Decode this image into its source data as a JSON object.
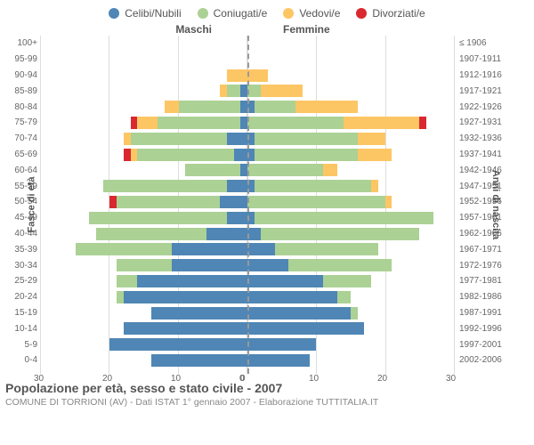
{
  "legend": [
    {
      "label": "Celibi/Nubili",
      "color": "#4f86b5"
    },
    {
      "label": "Coniugati/e",
      "color": "#abd194"
    },
    {
      "label": "Vedovi/e",
      "color": "#fdc664"
    },
    {
      "label": "Divorziati/e",
      "color": "#d9282f"
    }
  ],
  "headers": {
    "male": "Maschi",
    "female": "Femmine"
  },
  "ylabel_left": "Fasce di età",
  "ylabel_right": "Anni di nascita",
  "xticks": [
    0,
    10,
    20,
    30
  ],
  "xmax": 30,
  "title": "Popolazione per età, sesso e stato civile - 2007",
  "subtitle": "COMUNE DI TORRIONI (AV) - Dati ISTAT 1° gennaio 2007 - Elaborazione TUTTITALIA.IT",
  "grid_color": "#dddddd",
  "background": "#ffffff",
  "rows": [
    {
      "age": "100+",
      "birth": "≤ 1906",
      "m": {
        "c": 0,
        "m": 0,
        "w": 0,
        "d": 0
      },
      "f": {
        "c": 0,
        "m": 0,
        "w": 0,
        "d": 0
      }
    },
    {
      "age": "95-99",
      "birth": "1907-1911",
      "m": {
        "c": 0,
        "m": 0,
        "w": 0,
        "d": 0
      },
      "f": {
        "c": 0,
        "m": 0,
        "w": 0,
        "d": 0
      }
    },
    {
      "age": "90-94",
      "birth": "1912-1916",
      "m": {
        "c": 0,
        "m": 0,
        "w": 3,
        "d": 0
      },
      "f": {
        "c": 0,
        "m": 0,
        "w": 3,
        "d": 0
      }
    },
    {
      "age": "85-89",
      "birth": "1917-1921",
      "m": {
        "c": 1,
        "m": 2,
        "w": 1,
        "d": 0
      },
      "f": {
        "c": 0,
        "m": 2,
        "w": 6,
        "d": 0
      }
    },
    {
      "age": "80-84",
      "birth": "1922-1926",
      "m": {
        "c": 1,
        "m": 9,
        "w": 2,
        "d": 0
      },
      "f": {
        "c": 1,
        "m": 6,
        "w": 9,
        "d": 0
      }
    },
    {
      "age": "75-79",
      "birth": "1927-1931",
      "m": {
        "c": 1,
        "m": 12,
        "w": 3,
        "d": 1
      },
      "f": {
        "c": 0,
        "m": 14,
        "w": 11,
        "d": 1
      }
    },
    {
      "age": "70-74",
      "birth": "1932-1936",
      "m": {
        "c": 3,
        "m": 14,
        "w": 1,
        "d": 0
      },
      "f": {
        "c": 1,
        "m": 15,
        "w": 4,
        "d": 0
      }
    },
    {
      "age": "65-69",
      "birth": "1937-1941",
      "m": {
        "c": 2,
        "m": 14,
        "w": 1,
        "d": 1
      },
      "f": {
        "c": 1,
        "m": 15,
        "w": 5,
        "d": 0
      }
    },
    {
      "age": "60-64",
      "birth": "1942-1946",
      "m": {
        "c": 1,
        "m": 8,
        "w": 0,
        "d": 0
      },
      "f": {
        "c": 0,
        "m": 11,
        "w": 2,
        "d": 0
      }
    },
    {
      "age": "55-59",
      "birth": "1947-1951",
      "m": {
        "c": 3,
        "m": 18,
        "w": 0,
        "d": 0
      },
      "f": {
        "c": 1,
        "m": 17,
        "w": 1,
        "d": 0
      }
    },
    {
      "age": "50-54",
      "birth": "1952-1956",
      "m": {
        "c": 4,
        "m": 15,
        "w": 0,
        "d": 1
      },
      "f": {
        "c": 0,
        "m": 20,
        "w": 1,
        "d": 0
      }
    },
    {
      "age": "45-49",
      "birth": "1957-1961",
      "m": {
        "c": 3,
        "m": 20,
        "w": 0,
        "d": 0
      },
      "f": {
        "c": 1,
        "m": 26,
        "w": 0,
        "d": 0
      }
    },
    {
      "age": "40-44",
      "birth": "1962-1966",
      "m": {
        "c": 6,
        "m": 16,
        "w": 0,
        "d": 0
      },
      "f": {
        "c": 2,
        "m": 23,
        "w": 0,
        "d": 0
      }
    },
    {
      "age": "35-39",
      "birth": "1967-1971",
      "m": {
        "c": 11,
        "m": 14,
        "w": 0,
        "d": 0
      },
      "f": {
        "c": 4,
        "m": 15,
        "w": 0,
        "d": 0
      }
    },
    {
      "age": "30-34",
      "birth": "1972-1976",
      "m": {
        "c": 11,
        "m": 8,
        "w": 0,
        "d": 0
      },
      "f": {
        "c": 6,
        "m": 15,
        "w": 0,
        "d": 0
      }
    },
    {
      "age": "25-29",
      "birth": "1977-1981",
      "m": {
        "c": 16,
        "m": 3,
        "w": 0,
        "d": 0
      },
      "f": {
        "c": 11,
        "m": 7,
        "w": 0,
        "d": 0
      }
    },
    {
      "age": "20-24",
      "birth": "1982-1986",
      "m": {
        "c": 18,
        "m": 1,
        "w": 0,
        "d": 0
      },
      "f": {
        "c": 13,
        "m": 2,
        "w": 0,
        "d": 0
      }
    },
    {
      "age": "15-19",
      "birth": "1987-1991",
      "m": {
        "c": 14,
        "m": 0,
        "w": 0,
        "d": 0
      },
      "f": {
        "c": 15,
        "m": 1,
        "w": 0,
        "d": 0
      }
    },
    {
      "age": "10-14",
      "birth": "1992-1996",
      "m": {
        "c": 18,
        "m": 0,
        "w": 0,
        "d": 0
      },
      "f": {
        "c": 17,
        "m": 0,
        "w": 0,
        "d": 0
      }
    },
    {
      "age": "5-9",
      "birth": "1997-2001",
      "m": {
        "c": 20,
        "m": 0,
        "w": 0,
        "d": 0
      },
      "f": {
        "c": 10,
        "m": 0,
        "w": 0,
        "d": 0
      }
    },
    {
      "age": "0-4",
      "birth": "2002-2006",
      "m": {
        "c": 14,
        "m": 0,
        "w": 0,
        "d": 0
      },
      "f": {
        "c": 9,
        "m": 0,
        "w": 0,
        "d": 0
      }
    }
  ]
}
